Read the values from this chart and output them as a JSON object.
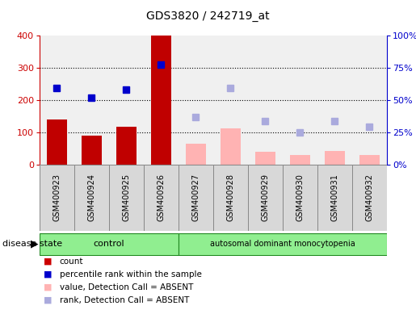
{
  "title": "GDS3820 / 242719_at",
  "samples": [
    "GSM400923",
    "GSM400924",
    "GSM400925",
    "GSM400926",
    "GSM400927",
    "GSM400928",
    "GSM400929",
    "GSM400930",
    "GSM400931",
    "GSM400932"
  ],
  "bar_values": [
    140,
    90,
    118,
    400,
    65,
    112,
    40,
    28,
    42,
    30
  ],
  "bar_colors": [
    "#c00000",
    "#c00000",
    "#c00000",
    "#c00000",
    "#ffb3b3",
    "#ffb3b3",
    "#ffb3b3",
    "#ffb3b3",
    "#ffb3b3",
    "#ffb3b3"
  ],
  "rank_values": [
    238,
    208,
    232,
    310,
    null,
    null,
    null,
    null,
    null,
    null
  ],
  "rank_color_present": "#0000cc",
  "absent_rank_values": [
    null,
    null,
    null,
    null,
    148,
    238,
    134,
    100,
    134,
    116
  ],
  "absent_rank_color": "#aaaadd",
  "ylim_left": [
    0,
    400
  ],
  "yticks_left": [
    0,
    100,
    200,
    300,
    400
  ],
  "yticks_right": [
    0,
    25,
    50,
    75,
    100
  ],
  "ytick_labels_right": [
    "0%",
    "25%",
    "50%",
    "75%",
    "100%"
  ],
  "n_control": 4,
  "n_disease": 6,
  "control_label": "control",
  "disease_label": "autosomal dominant monocytopenia",
  "disease_state_label": "disease state",
  "legend_items": [
    {
      "label": "count",
      "color": "#cc0000"
    },
    {
      "label": "percentile rank within the sample",
      "color": "#0000cc"
    },
    {
      "label": "value, Detection Call = ABSENT",
      "color": "#ffb3b3"
    },
    {
      "label": "rank, Detection Call = ABSENT",
      "color": "#aaaadd"
    }
  ],
  "axis_color_left": "#cc0000",
  "axis_color_right": "#0000cc",
  "bar_width": 0.6,
  "plot_bg": "#f0f0f0",
  "label_bg": "#d8d8d8",
  "green_light": "#90ee90"
}
